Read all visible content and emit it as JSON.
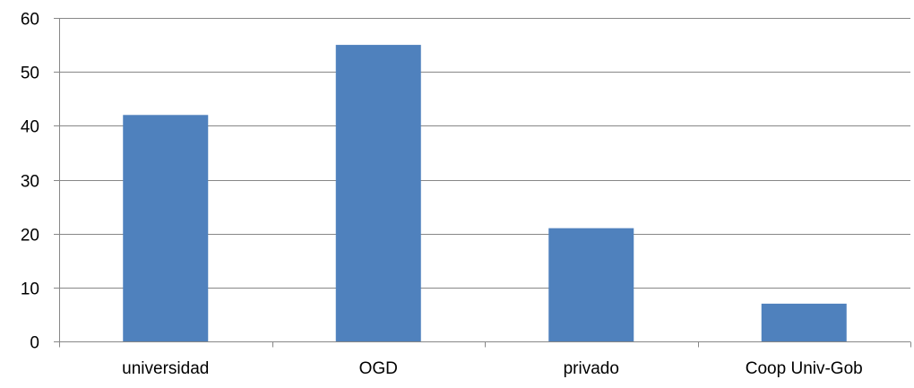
{
  "chart_data": {
    "type": "bar",
    "title": "",
    "xlabel": "",
    "ylabel": "",
    "categories": [
      "universidad",
      "OGD",
      "privado",
      "Coop Univ-Gob"
    ],
    "values": [
      42,
      55,
      21,
      7
    ],
    "ylim": [
      0,
      60
    ],
    "yticks": [
      0,
      10,
      20,
      30,
      40,
      50,
      60
    ],
    "ytick_labels": [
      "0",
      "10",
      "20",
      "30",
      "40",
      "50",
      "60"
    ],
    "grid": "horizontal",
    "legend": "none",
    "bar_color": "#4f81bd",
    "grid_color": "#878787",
    "axis_color": "#878787"
  }
}
